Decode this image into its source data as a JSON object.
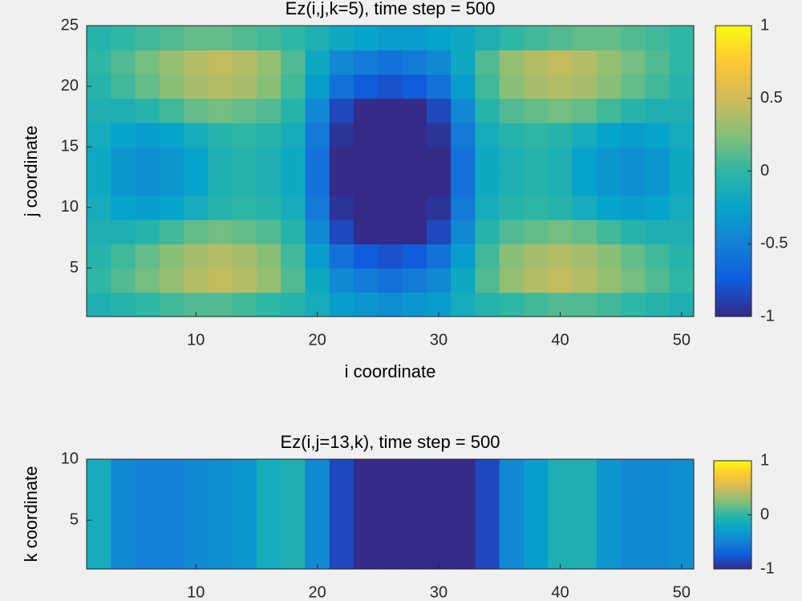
{
  "chart_data": [
    {
      "type": "heatmap",
      "title": "Ez(i,j,k=5), time step = 500",
      "x_label": "i coordinate",
      "y_label": "j coordinate",
      "xlim": [
        1,
        51
      ],
      "ylim": [
        1,
        25
      ],
      "xticks": [
        10,
        20,
        30,
        40,
        50
      ],
      "yticks": [
        5,
        10,
        15,
        20,
        25
      ],
      "colormap": [
        "#352a87",
        "#0f5cdd",
        "#1481d6",
        "#06a4ca",
        "#2eb7a4",
        "#87bf77",
        "#d1bb59",
        "#fec832",
        "#f9fb0e"
      ],
      "clim": [
        -1,
        1
      ],
      "cticks": [
        -1,
        -0.5,
        0,
        0.5,
        1
      ],
      "z": [
        [
          -0.1,
          -0.05,
          0,
          0.05,
          0.1,
          0.1,
          0.05,
          0,
          -0.05,
          -0.15,
          -0.3,
          -0.35,
          -0.4,
          -0.35,
          -0.3,
          -0.15,
          -0.05,
          0,
          0.05,
          0.1,
          0.1,
          0.05,
          0,
          -0.05,
          -0.1
        ],
        [
          0,
          0.1,
          0.2,
          0.3,
          0.4,
          0.45,
          0.4,
          0.3,
          0.1,
          -0.2,
          -0.45,
          -0.55,
          -0.6,
          -0.55,
          -0.45,
          -0.2,
          0.1,
          0.3,
          0.4,
          0.45,
          0.4,
          0.3,
          0.2,
          0.1,
          0
        ],
        [
          -0.05,
          0.05,
          0.15,
          0.25,
          0.35,
          0.4,
          0.35,
          0.25,
          0.05,
          -0.3,
          -0.6,
          -0.75,
          -0.8,
          -0.75,
          -0.6,
          -0.3,
          0.05,
          0.25,
          0.35,
          0.4,
          0.35,
          0.25,
          0.15,
          0.05,
          -0.05
        ],
        [
          -0.1,
          -0.1,
          -0.05,
          0.05,
          0.15,
          0.2,
          0.15,
          0.1,
          -0.05,
          -0.45,
          -0.85,
          -1,
          -1,
          -1,
          -0.85,
          -0.45,
          -0.05,
          0.1,
          0.15,
          0.2,
          0.15,
          0.05,
          -0.05,
          -0.1,
          -0.1
        ],
        [
          -0.15,
          -0.25,
          -0.3,
          -0.25,
          -0.15,
          -0.05,
          0,
          -0.05,
          -0.15,
          -0.55,
          -0.95,
          -1,
          -1,
          -1,
          -0.95,
          -0.55,
          -0.15,
          -0.05,
          0,
          -0.05,
          -0.15,
          -0.25,
          -0.3,
          -0.25,
          -0.15
        ],
        [
          -0.2,
          -0.35,
          -0.4,
          -0.35,
          -0.25,
          -0.1,
          -0.05,
          -0.1,
          -0.2,
          -0.6,
          -1,
          -1,
          -1,
          -1,
          -1,
          -0.6,
          -0.2,
          -0.1,
          -0.05,
          -0.1,
          -0.25,
          -0.35,
          -0.4,
          -0.35,
          -0.2
        ],
        [
          -0.2,
          -0.35,
          -0.4,
          -0.35,
          -0.25,
          -0.1,
          -0.05,
          -0.1,
          -0.2,
          -0.6,
          -1,
          -1,
          -1,
          -1,
          -1,
          -0.6,
          -0.2,
          -0.1,
          -0.05,
          -0.1,
          -0.25,
          -0.35,
          -0.4,
          -0.35,
          -0.2
        ],
        [
          -0.15,
          -0.25,
          -0.3,
          -0.25,
          -0.15,
          -0.05,
          0,
          -0.05,
          -0.15,
          -0.55,
          -0.95,
          -1,
          -1,
          -1,
          -0.95,
          -0.55,
          -0.15,
          -0.05,
          0,
          -0.05,
          -0.15,
          -0.25,
          -0.3,
          -0.25,
          -0.15
        ],
        [
          -0.1,
          -0.1,
          -0.05,
          0.05,
          0.15,
          0.2,
          0.15,
          0.1,
          -0.05,
          -0.45,
          -0.85,
          -1,
          -1,
          -1,
          -0.85,
          -0.45,
          -0.05,
          0.1,
          0.15,
          0.2,
          0.15,
          0.05,
          -0.05,
          -0.1,
          -0.1
        ],
        [
          -0.05,
          0.05,
          0.15,
          0.25,
          0.35,
          0.4,
          0.35,
          0.25,
          0.05,
          -0.3,
          -0.6,
          -0.75,
          -0.8,
          -0.75,
          -0.6,
          -0.3,
          0.05,
          0.25,
          0.35,
          0.4,
          0.35,
          0.25,
          0.15,
          0.05,
          -0.05
        ],
        [
          0,
          0.1,
          0.2,
          0.3,
          0.4,
          0.45,
          0.4,
          0.3,
          0.1,
          -0.2,
          -0.45,
          -0.55,
          -0.6,
          -0.55,
          -0.45,
          -0.2,
          0.1,
          0.3,
          0.4,
          0.45,
          0.4,
          0.3,
          0.2,
          0.1,
          0
        ],
        [
          -0.05,
          0,
          0.05,
          0.1,
          0.15,
          0.15,
          0.1,
          0.05,
          0,
          -0.1,
          -0.2,
          -0.25,
          -0.3,
          -0.3,
          -0.25,
          -0.2,
          -0.1,
          0,
          0.05,
          0.1,
          0.15,
          0.15,
          0.1,
          0.05,
          0
        ]
      ]
    },
    {
      "type": "heatmap",
      "title": "Ez(i,j=13,k), time step = 500",
      "y_label": "k coordinate",
      "xlim": [
        1,
        51
      ],
      "ylim": [
        1,
        10
      ],
      "xticks": [
        10,
        20,
        30,
        40,
        50
      ],
      "yticks": [
        5,
        10
      ],
      "colormap": [
        "#352a87",
        "#0f5cdd",
        "#1481d6",
        "#06a4ca",
        "#2eb7a4",
        "#87bf77",
        "#d1bb59",
        "#fec832",
        "#f9fb0e"
      ],
      "clim": [
        -1,
        1
      ],
      "cticks": [
        -1,
        0,
        1
      ],
      "z": [
        [
          -0.15,
          -0.45,
          -0.5,
          -0.5,
          -0.45,
          -0.4,
          -0.35,
          -0.15,
          -0.1,
          -0.45,
          -0.85,
          -1,
          -1,
          -1,
          -1,
          -1,
          -0.85,
          -0.45,
          -0.3,
          -0.1,
          -0.1,
          -0.35,
          -0.45,
          -0.45,
          -0.4
        ]
      ]
    }
  ]
}
